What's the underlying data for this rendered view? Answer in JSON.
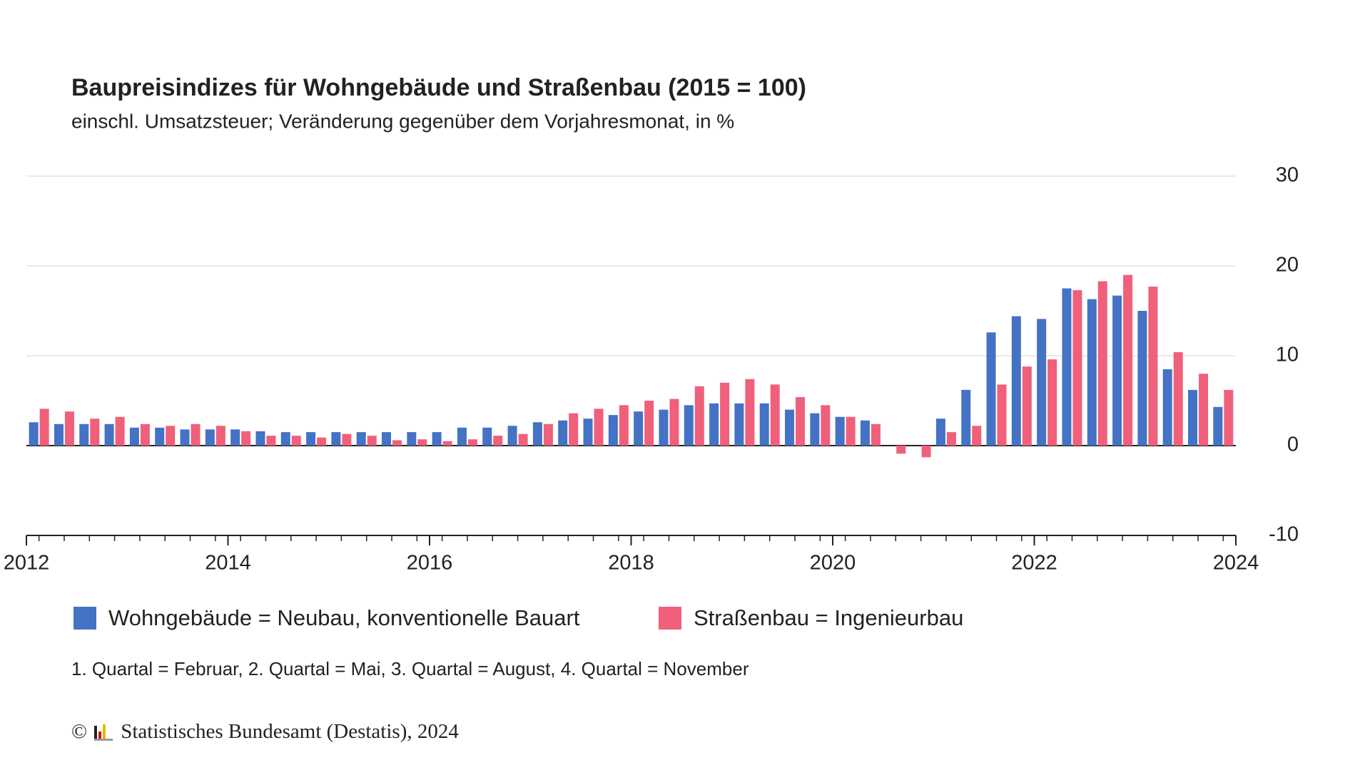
{
  "chart_data": {
    "type": "bar",
    "title": "Baupreisindizes für Wohngebäude und Straßenbau (2015 = 100)",
    "subtitle": "einschl. Umsatzsteuer; Veränderung gegenüber dem Vorjahresmonat, in %",
    "note": "1. Quartal = Februar, 2. Quartal = Mai, 3. Quartal = August, 4. Quartal = November",
    "source": "© Statistisches Bundesamt (Destatis), 2024",
    "x": [
      2012.125,
      2012.375,
      2012.625,
      2012.875,
      2013.125,
      2013.375,
      2013.625,
      2013.875,
      2014.125,
      2014.375,
      2014.625,
      2014.875,
      2015.125,
      2015.375,
      2015.625,
      2015.875,
      2016.125,
      2016.375,
      2016.625,
      2016.875,
      2017.125,
      2017.375,
      2017.625,
      2017.875,
      2018.125,
      2018.375,
      2018.625,
      2018.875,
      2019.125,
      2019.375,
      2019.625,
      2019.875,
      2020.125,
      2020.375,
      2020.625,
      2020.875,
      2021.125,
      2021.375,
      2021.625,
      2021.875,
      2022.125,
      2022.375,
      2022.625,
      2022.875,
      2023.125,
      2023.375,
      2023.625,
      2023.875
    ],
    "series": [
      {
        "name": "Wohngebäude = Neubau, konventionelle Bauart",
        "color": "#4472c4",
        "values": [
          2.6,
          2.4,
          2.4,
          2.4,
          2.0,
          2.0,
          1.8,
          1.8,
          1.8,
          1.6,
          1.5,
          1.5,
          1.5,
          1.5,
          1.5,
          1.5,
          1.5,
          2.0,
          2.0,
          2.2,
          2.6,
          2.8,
          3.0,
          3.4,
          3.8,
          4.0,
          4.5,
          4.7,
          4.7,
          4.7,
          4.0,
          3.6,
          3.2,
          2.8,
          0,
          0,
          3.0,
          6.2,
          12.6,
          14.4,
          14.1,
          17.5,
          16.3,
          16.7,
          15.0,
          8.5,
          6.2,
          4.3
        ]
      },
      {
        "name": "Straßenbau = Ingenieurbau",
        "color": "#f0607a",
        "values": [
          4.1,
          3.8,
          3.0,
          3.2,
          2.4,
          2.2,
          2.4,
          2.2,
          1.6,
          1.1,
          1.1,
          0.9,
          1.3,
          1.1,
          0.6,
          0.7,
          0.5,
          0.7,
          1.1,
          1.3,
          2.4,
          3.6,
          4.1,
          4.5,
          5.0,
          5.2,
          6.6,
          7.0,
          7.4,
          6.8,
          5.4,
          4.5,
          3.2,
          2.4,
          -0.9,
          -1.3,
          1.5,
          2.2,
          6.8,
          8.8,
          9.6,
          17.3,
          18.3,
          19.0,
          17.7,
          10.4,
          8.0,
          6.2
        ]
      }
    ],
    "xlim": [
      2012,
      2024
    ],
    "xticks": [
      2012,
      2014,
      2016,
      2018,
      2020,
      2022,
      2024
    ],
    "ylim": [
      -10,
      30
    ],
    "yticks": [
      -10,
      0,
      10,
      20,
      30
    ],
    "grid": true
  }
}
